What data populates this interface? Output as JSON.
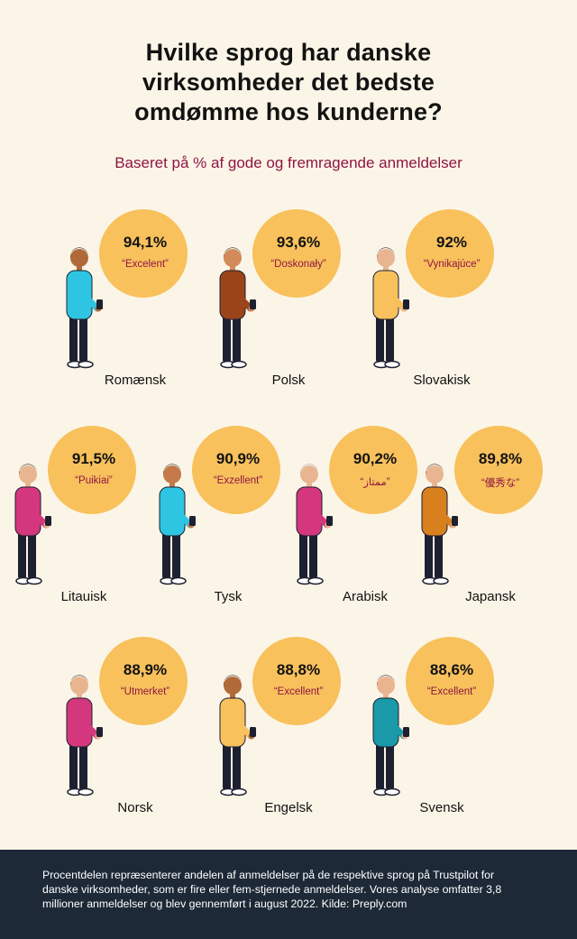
{
  "title_lines": [
    "Hvilke sprog har danske",
    "virksomheder det bedste",
    "omdømme hos kunderne?"
  ],
  "subtitle": "Baseret på % af gode og fremragende anmeldelser",
  "languages": [
    {
      "percent": "94,1%",
      "word": "“Excelent”",
      "language": "Romænsk",
      "figure_shirt": "#2ec5e3",
      "figure_hair": "#1b1b1b",
      "figure_skin": "#b06a3a"
    },
    {
      "percent": "93,6%",
      "word": "“Doskonały”",
      "language": "Polsk",
      "figure_shirt": "#9c4419",
      "figure_hair": "#1b1b1b",
      "figure_skin": "#d38a5a"
    },
    {
      "percent": "92%",
      "word": "“Vynikajúce”",
      "language": "Slovakisk",
      "figure_shirt": "#f8c15c",
      "figure_hair": "#1b1b1b",
      "figure_skin": "#e9b591"
    },
    {
      "percent": "91,5%",
      "word": "“Puikiai”",
      "language": "Litauisk",
      "figure_shirt": "#d4377e",
      "figure_hair": "#1b1b1b",
      "figure_skin": "#e9b591"
    },
    {
      "percent": "90,9%",
      "word": "“Exzellent”",
      "language": "Tysk",
      "figure_shirt": "#2ec5e3",
      "figure_hair": "#1b1b1b",
      "figure_skin": "#c47a48"
    },
    {
      "percent": "90,2%",
      "word": "“ممتاز”",
      "language": "Arabisk",
      "figure_shirt": "#d4377e",
      "figure_hair": "#9a9a9a",
      "figure_skin": "#e9b591"
    },
    {
      "percent": "89,8%",
      "word": "“優秀な”",
      "language": "Japansk",
      "figure_shirt": "#d9801e",
      "figure_hair": "#1b1b1b",
      "figure_skin": "#e9b591"
    },
    {
      "percent": "88,9%",
      "word": "“Utmerket”",
      "language": "Norsk",
      "figure_shirt": "#d4377e",
      "figure_hair": "#1b1b1b",
      "figure_skin": "#e9b591"
    },
    {
      "percent": "88,8%",
      "word": "“Excellent”",
      "language": "Engelsk",
      "figure_shirt": "#f8c15c",
      "figure_hair": "#1b1b1b",
      "figure_skin": "#b06a3a"
    },
    {
      "percent": "88,6%",
      "word": "“Excellent”",
      "language": "Svensk",
      "figure_shirt": "#1a9aa8",
      "figure_hair": "#1b1b1b",
      "figure_skin": "#e9b591"
    }
  ],
  "footer": "Procentdelen repræsenterer andelen af anmeldelser  på de respektive sprog på Trustpilot for danske virksomheder, som er fire eller fem-stjernede anmeldelser. Vores analyse omfatter 3,8 millioner anmeldelser og blev gennemført i august 2022. Kilde: Preply.com",
  "colors": {
    "background": "#fbf5e7",
    "circle": "#f8c15c",
    "accent": "#8f1543",
    "footer_bg": "#1d2937"
  }
}
